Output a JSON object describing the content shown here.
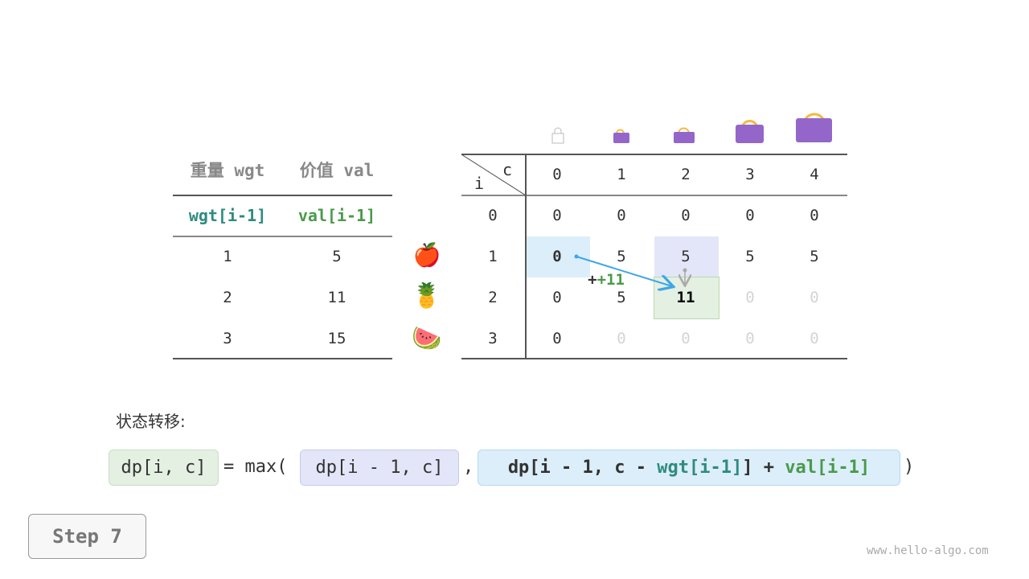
{
  "left_table": {
    "headers": [
      "重量 wgt",
      "价值 val"
    ],
    "subheaders": [
      "wgt[i-1]",
      "val[i-1]"
    ],
    "rows": [
      [
        "1",
        "5"
      ],
      [
        "2",
        "11"
      ],
      [
        "3",
        "15"
      ]
    ]
  },
  "items": [
    {
      "icon": "apple",
      "glyph": "🍎"
    },
    {
      "icon": "pineapple",
      "glyph": "🍍"
    },
    {
      "icon": "watermelon",
      "glyph": "🍉"
    }
  ],
  "dp_table": {
    "corner_c": "c",
    "corner_i": "i",
    "col_headers": [
      "0",
      "1",
      "2",
      "3",
      "4"
    ],
    "row_headers": [
      "0",
      "1",
      "2",
      "3"
    ],
    "rows": [
      [
        "0",
        "0",
        "0",
        "0",
        "0"
      ],
      [
        "0",
        "5",
        "5",
        "5",
        "5"
      ],
      [
        "0",
        "5",
        "11",
        "0",
        "0"
      ],
      [
        "0",
        "0",
        "0",
        "0",
        "0"
      ]
    ],
    "bag_icons": [
      "bag-empty",
      "bag-1",
      "bag-2",
      "bag-3",
      "bag-4"
    ]
  },
  "annotation": "+11",
  "formula": {
    "label": "状态转移:",
    "lhs": "dp[i, c]",
    "eq": "= max(",
    "opt1": "dp[i - 1, c]",
    "comma": ",",
    "opt2_a": "dp[i - 1, c - ",
    "opt2_wgt": "wgt[i-1]",
    "opt2_b": "] + ",
    "opt2_val": "val[i-1]",
    "close": ")"
  },
  "step_label": "Step 7",
  "watermark": "www.hello-algo.com",
  "colors": {
    "highlight_blue": "#dbeefa",
    "highlight_purple": "#e3e6f8",
    "highlight_green": "#e4f0e2",
    "arrow": "#3ea6e8",
    "bag": "#9466c9",
    "handle": "#f5b940"
  }
}
